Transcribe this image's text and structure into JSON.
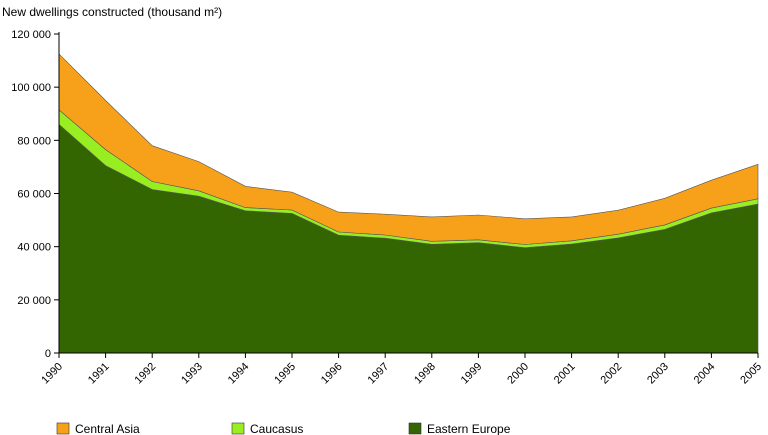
{
  "chart_data": {
    "type": "area",
    "stacked": true,
    "title": "",
    "ylabel": "New dwellings constructed (thousand m²)",
    "xlabel": "",
    "ylim": [
      0,
      120000
    ],
    "yticks": [
      0,
      20000,
      40000,
      60000,
      80000,
      100000,
      120000
    ],
    "ytick_labels": [
      "0",
      "20 000",
      "40 000",
      "60 000",
      "80 000",
      "100 000",
      "120 000"
    ],
    "categories": [
      "1990",
      "1991",
      "1992",
      "1993",
      "1994",
      "1995",
      "1996",
      "1997",
      "1998",
      "1999",
      "2000",
      "2001",
      "2002",
      "2003",
      "2004",
      "2005"
    ],
    "grid": false,
    "legend_position": "bottom",
    "series": [
      {
        "name": "Eastern Europe",
        "color": "#336600",
        "values": [
          86000,
          70500,
          61500,
          59000,
          53500,
          52500,
          44300,
          43200,
          40900,
          41500,
          39600,
          41000,
          43300,
          46500,
          52700,
          56000
        ]
      },
      {
        "name": "Caucasus",
        "color": "#99ee22",
        "values": [
          5500,
          6000,
          3000,
          2000,
          1200,
          1300,
          1200,
          1200,
          1100,
          1100,
          1200,
          1200,
          1400,
          1700,
          1800,
          2000
        ]
      },
      {
        "name": "Central Asia",
        "color": "#f7a11a",
        "values": [
          21000,
          18500,
          13500,
          11000,
          8000,
          6700,
          7500,
          7800,
          9200,
          9300,
          9700,
          9000,
          9000,
          10000,
          10500,
          13000
        ]
      }
    ],
    "legend_order": [
      "Central Asia",
      "Caucasus",
      "Eastern Europe"
    ]
  }
}
